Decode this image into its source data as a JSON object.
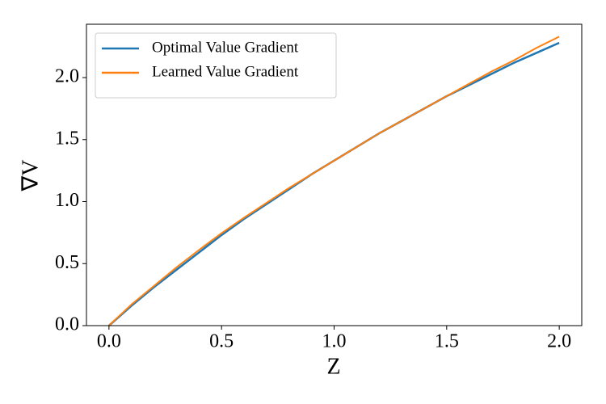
{
  "chart_data": {
    "type": "line",
    "x": [
      0,
      0.1,
      0.2,
      0.3,
      0.4,
      0.5,
      0.6,
      0.7,
      0.8,
      0.9,
      1.0,
      1.1,
      1.2,
      1.3,
      1.4,
      1.5,
      1.6,
      1.7,
      1.8,
      1.9,
      2.0
    ],
    "series": [
      {
        "name": "Optimal Value Gradient",
        "color": "#1f77b4",
        "values": [
          0.0,
          0.16,
          0.31,
          0.45,
          0.59,
          0.73,
          0.86,
          0.98,
          1.1,
          1.22,
          1.33,
          1.44,
          1.55,
          1.65,
          1.75,
          1.85,
          1.94,
          2.03,
          2.12,
          2.2,
          2.28
        ]
      },
      {
        "name": "Learned Value Gradient",
        "color": "#ff7f0e",
        "values": [
          0.0,
          0.17,
          0.32,
          0.47,
          0.61,
          0.745,
          0.87,
          0.99,
          1.11,
          1.22,
          1.33,
          1.44,
          1.55,
          1.65,
          1.75,
          1.85,
          1.95,
          2.05,
          2.14,
          2.24,
          2.33
        ]
      }
    ],
    "x_label": "Z",
    "y_label": "∇V",
    "xlim": [
      -0.1,
      2.1
    ],
    "ylim": [
      0,
      2.43
    ],
    "xticks": [
      {
        "value": 0,
        "label": "0.0"
      },
      {
        "value": 0.5,
        "label": "0.5"
      },
      {
        "value": 1,
        "label": "1.0"
      },
      {
        "value": 1.5,
        "label": "1.5"
      },
      {
        "value": 2,
        "label": "2.0"
      }
    ],
    "yticks": [
      {
        "value": 0,
        "label": "0.0"
      },
      {
        "value": 0.5,
        "label": "0.5"
      },
      {
        "value": 1,
        "label": "1.0"
      },
      {
        "value": 1.5,
        "label": "1.5"
      },
      {
        "value": 2,
        "label": "2.0"
      }
    ],
    "grid": false,
    "legend": "upper-left"
  }
}
